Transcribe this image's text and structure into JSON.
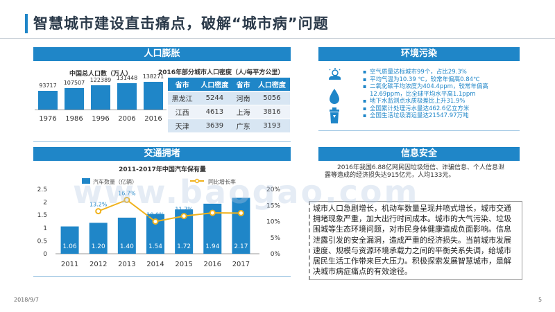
{
  "page": {
    "title": "智慧城市建设直击痛点，破解“城市病”问题",
    "date": "2018/9/7",
    "page_number": "5",
    "watermark": "www.baogao.com"
  },
  "population": {
    "header": "人口膨胀",
    "chart_title": "中国总人口数（万人）",
    "years": [
      "1976",
      "1986",
      "1996",
      "2006",
      "2016"
    ],
    "values": [
      "93717",
      "107507",
      "122389",
      "131448",
      "138271"
    ],
    "bar_color": "#1f86c8"
  },
  "density": {
    "title": "2016年部分城市人口密度（人/每平方公里）",
    "headers": [
      "省市",
      "人口密度",
      "省市",
      "人口密度"
    ],
    "rows": [
      [
        "黑龙江",
        "5244",
        "河南",
        "5056"
      ],
      [
        "江西",
        "4613",
        "上海",
        "3816"
      ],
      [
        "天津",
        "3639",
        "广东",
        "3193"
      ]
    ]
  },
  "environment": {
    "header": "环境污染",
    "icons": [
      "sun-cloud-icon",
      "water-drop-icon",
      "trash-bin-icon"
    ],
    "items": [
      "空气质量达标城市99个，占比29.3%",
      "平均气温为10.39 ℃，较常年偏高0.84℃",
      "二氧化碳平均浓度为404.4ppm，较常年偏高12.69ppm，比全球平均水平高1.1ppm",
      "地下水监测点水质极差比上升31.9%",
      "全国累计处理污水量达462.6亿立方米",
      "全国生活垃圾清运量达21547.97万吨"
    ]
  },
  "traffic": {
    "header": "交通拥堵"
  },
  "security": {
    "header": "信息安全",
    "text": "2016年我国6.88亿网民因垃圾短信、诈骗信息、个人信息泄露等造成的经济损失达915亿元，人均133元。"
  },
  "callout": {
    "text": "城市人口急剧增长，机动车数量呈现井喷式增长，城市交通拥堵现象严重，加大出行时间成本。城市的大气污染、垃圾围城等生态环境问题，对市民身体健康造成负面影响。信息泄露引发的安全漏洞，造成严重的经济损失。当前城市发展速度、规模与资源环境承载力之间的平衡关系失调，给城市居民生活工作带来巨大压力。积极探索发展智慧城市，是解决城市病症痛点的有效途径。"
  },
  "chart_data": {
    "type": "bar",
    "title": "2011-2017年中国汽车保有量",
    "categories": [
      "2011",
      "2012",
      "2013",
      "2014",
      "2015",
      "2016",
      "2017"
    ],
    "series": [
      {
        "name": "汽车数量（亿辆）",
        "type": "bar",
        "axis": "left",
        "values": [
          1.06,
          1.2,
          1.4,
          1.54,
          1.72,
          1.94,
          2.17
        ],
        "labels": [
          "1.06",
          "1.20",
          "1.40",
          "1.54",
          "1.72",
          "1.94",
          "2.17"
        ],
        "color": "#1f86c8"
      },
      {
        "name": "同比增长率",
        "type": "line",
        "axis": "right",
        "values": [
          null,
          13.2,
          16.7,
          10.0,
          11.7,
          12.7,
          12.6
        ],
        "labels": [
          "",
          "13.2%",
          "16.7%",
          "10.0%",
          "11.7%",
          "",
          "12.6%"
        ],
        "color": "#f0b21c"
      }
    ],
    "y_left": {
      "range": [
        0,
        2.5
      ],
      "ticks": [
        "0",
        "0.5",
        "1",
        "1.5",
        "2",
        "2.5"
      ]
    },
    "y_right": {
      "range": [
        0,
        20
      ],
      "ticks": [
        "0%",
        "5%",
        "10%",
        "15%",
        "20%"
      ]
    },
    "legend": "top"
  }
}
